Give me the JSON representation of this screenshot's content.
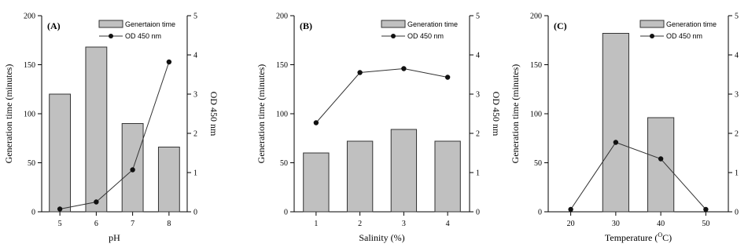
{
  "colors": {
    "bar_fill": "#c0c0c0",
    "bar_stroke": "#333333",
    "line": "#333333",
    "marker": "#111111",
    "axis": "#000000"
  },
  "chart_data": [
    {
      "type": "bar",
      "panel_label": "(A)",
      "categories": [
        "5",
        "6",
        "7",
        "8"
      ],
      "xlabel": "pH",
      "ylabel": "Generation time (minutes)",
      "y2label": "OD 450 nm",
      "ylim": [
        0,
        200
      ],
      "y_ticks": [
        "0",
        "50",
        "100",
        "150",
        "200"
      ],
      "y2lim": [
        0,
        5
      ],
      "y2_ticks": [
        "0",
        "1",
        "2",
        "3",
        "4",
        "5"
      ],
      "legend": {
        "bar_label": "Genertaion time",
        "line_label": "OD 450 nm",
        "placement": "top-right"
      },
      "series": [
        {
          "name": "Genertaion time",
          "kind": "bar",
          "axis": "left",
          "values": [
            120,
            168,
            90,
            66
          ]
        },
        {
          "name": "OD 450 nm",
          "kind": "line",
          "axis": "right",
          "values": [
            0.07,
            0.25,
            1.07,
            3.82
          ]
        }
      ]
    },
    {
      "type": "bar",
      "panel_label": "(B)",
      "categories": [
        "1",
        "2",
        "3",
        "4"
      ],
      "xlabel": "Salinity (%)",
      "ylabel": "Generation time (minutes)",
      "y2label": "OD 450 nm",
      "ylim": [
        0,
        200
      ],
      "y_ticks": [
        "0",
        "50",
        "100",
        "150",
        "200"
      ],
      "y2lim": [
        0,
        5
      ],
      "y2_ticks": [
        "0",
        "1",
        "2",
        "3",
        "4",
        "5"
      ],
      "legend": {
        "bar_label": "Generation time",
        "line_label": "OD 450 nm",
        "placement": "top-right"
      },
      "series": [
        {
          "name": "Generation time",
          "kind": "bar",
          "axis": "left",
          "values": [
            60,
            72,
            84,
            72
          ]
        },
        {
          "name": "OD 450 nm",
          "kind": "line",
          "axis": "right",
          "values": [
            2.27,
            3.55,
            3.65,
            3.43
          ]
        }
      ]
    },
    {
      "type": "bar",
      "panel_label": "(C)",
      "categories": [
        "20",
        "30",
        "40",
        "50"
      ],
      "xlabel": "Temperature (",
      "xlabel_sup": "O",
      "xlabel_tail": "C)",
      "ylabel": "Generation time (minutes)",
      "y2label": "OD 450 nm",
      "ylim": [
        0,
        200
      ],
      "y_ticks": [
        "0",
        "50",
        "100",
        "150",
        "200"
      ],
      "y2lim": [
        0,
        5
      ],
      "y2_ticks": [
        "0",
        "1",
        "2",
        "3",
        "4",
        "5"
      ],
      "legend": {
        "bar_label": "Generation time",
        "line_label": "OD 450 nm",
        "placement": "top-right"
      },
      "series": [
        {
          "name": "Generation time",
          "kind": "bar",
          "axis": "left",
          "values": [
            0,
            182,
            96,
            0
          ]
        },
        {
          "name": "OD 450 nm",
          "kind": "line",
          "axis": "right",
          "values": [
            0.06,
            1.77,
            1.35,
            0.06
          ]
        }
      ]
    }
  ]
}
